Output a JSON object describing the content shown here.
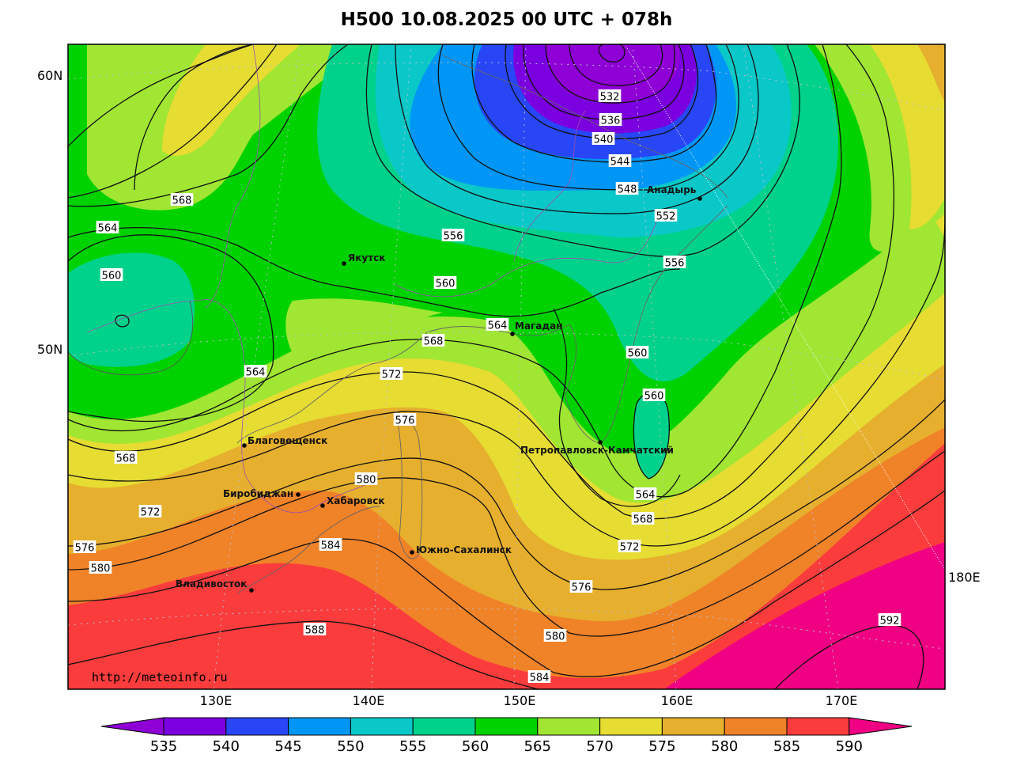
{
  "title": "H500  10.08.2025 00 UTC + 078h",
  "credit": "http://meteoinfo.ru",
  "lat_labels": [
    "60N",
    "50N"
  ],
  "lon_labels": [
    "130E",
    "140E",
    "150E",
    "160E",
    "170E",
    "180E"
  ],
  "colorbar": {
    "labels": [
      "535",
      "540",
      "545",
      "550",
      "555",
      "560",
      "565",
      "570",
      "575",
      "580",
      "585",
      "590"
    ],
    "colors": [
      "#8f00d6",
      "#7a00e0",
      "#2846f5",
      "#0096f5",
      "#0ac8c8",
      "#00d28c",
      "#00d200",
      "#a0e632",
      "#e6dc32",
      "#e6af2d",
      "#f08228",
      "#fa3c3c",
      "#f00082"
    ]
  },
  "fill_colors": {
    "c535": "#8f00d6",
    "c540": "#7a00e0",
    "c545": "#2846f5",
    "c550": "#0096f5",
    "c555": "#0ac8c8",
    "c560": "#00d28c",
    "c565": "#00d200",
    "c570": "#a0e632",
    "c575": "#e6dc32",
    "c580": "#e6af2d",
    "c585": "#f08228",
    "c590": "#fa3c3c",
    "c595": "#f00082"
  },
  "isoline_labels": [
    "532",
    "536",
    "540",
    "544",
    "548",
    "552",
    "556",
    "560",
    "564",
    "568",
    "572",
    "576",
    "580",
    "584",
    "588",
    "592"
  ],
  "cities": [
    "Анадырь",
    "Якутск",
    "Магадан",
    "Благовещенск",
    "Петропавловск-Камчатский",
    "Биробиджан",
    "Хабаровск",
    "Южно-Сахалинск",
    "Владивосток"
  ]
}
